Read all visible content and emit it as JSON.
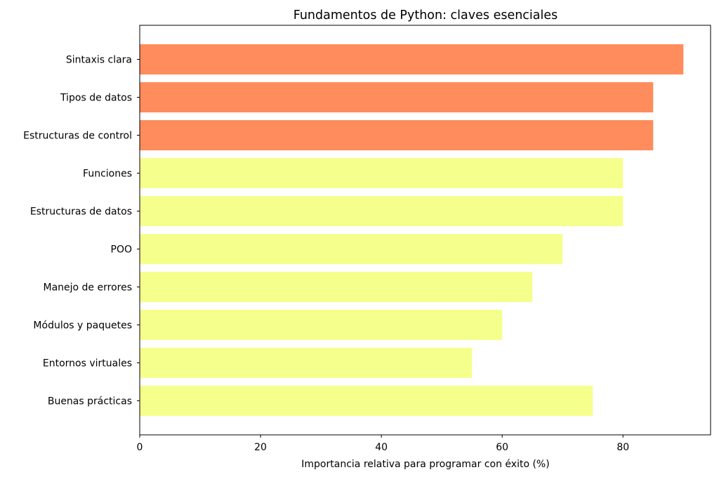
{
  "chart_data": {
    "type": "bar",
    "orientation": "horizontal",
    "title": "Fundamentos de Python: claves esenciales",
    "xlabel": "Importancia relativa para programar con éxito (%)",
    "ylabel": "",
    "categories": [
      "Sintaxis clara",
      "Tipos de datos",
      "Estructuras de control",
      "Funciones",
      "Estructuras de datos",
      "POO",
      "Manejo de errores",
      "Módulos y paquetes",
      "Entornos virtuales",
      "Buenas prácticas"
    ],
    "values": [
      90,
      85,
      85,
      80,
      80,
      70,
      65,
      60,
      55,
      75
    ],
    "colors": [
      "#FF8C5C",
      "#FF8C5C",
      "#FF8C5C",
      "#F5FF8C",
      "#F5FF8C",
      "#F5FF8C",
      "#F5FF8C",
      "#F5FF8C",
      "#F5FF8C",
      "#F5FF8C"
    ],
    "xlim": [
      0,
      94.5
    ],
    "xticks": [
      0,
      20,
      40,
      60,
      80
    ],
    "grid": false
  }
}
